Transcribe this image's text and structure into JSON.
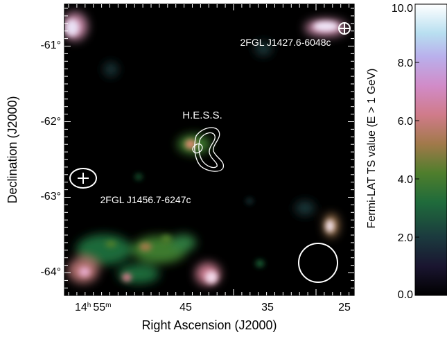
{
  "map": {
    "x_axis_title": "Right Ascension (J2000)",
    "y_axis_title": "Declination (J2000)",
    "x_ticks": [
      {
        "h": "14",
        "m": "55",
        "label": ""
      },
      {
        "label": "45"
      },
      {
        "label": "35"
      },
      {
        "label": "25"
      }
    ],
    "y_ticks": [
      "-61°",
      "-62°",
      "-63°",
      "-64°"
    ],
    "annotations": {
      "hess": "H.E.S.S.",
      "src_upper_right": "2FGL J1427.6-6048c",
      "src_left": "2FGL J1456.7-6247c"
    }
  },
  "colorbar": {
    "title": "Fermi-LAT TS value (E > 1 GeV)",
    "ticks": [
      "10.0",
      "8.0",
      "6.0",
      "4.0",
      "2.0",
      "0.0"
    ],
    "min": 0.0,
    "max": 10.0,
    "colormap": "cubehelix"
  },
  "colors": {
    "background": "#000000",
    "contour": "#ffffff",
    "axes": "#000000"
  }
}
